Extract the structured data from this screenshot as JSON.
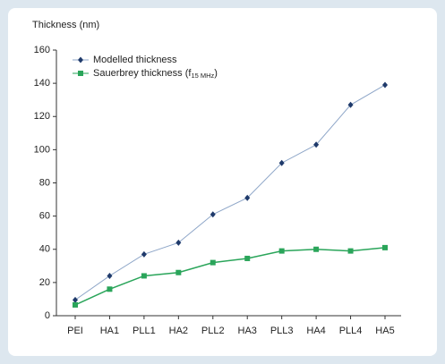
{
  "chart_data": {
    "type": "line",
    "y_label": "Thickness (nm)",
    "categories": [
      "PEI",
      "HA1",
      "PLL1",
      "HA2",
      "PLL2",
      "HA3",
      "PLL3",
      "HA4",
      "PLL4",
      "HA5"
    ],
    "series": [
      {
        "name": "Modelled thickness",
        "color": "#1f3a6b",
        "line_color": "#8ea6c8",
        "marker": "diamond",
        "values": [
          9.5,
          24,
          37,
          44,
          61,
          71,
          92,
          103,
          127,
          139
        ]
      },
      {
        "name": "Sauerbrey thickness (f",
        "name_subscript": "15 MHz",
        "name_suffix": ")",
        "color": "#2aa55a",
        "line_color": "#2aa55a",
        "marker": "square",
        "values": [
          6.5,
          16,
          24,
          26,
          32,
          34.5,
          39,
          40,
          39,
          41
        ]
      }
    ],
    "ylim": [
      0,
      160
    ],
    "yticks": [
      0,
      20,
      40,
      60,
      80,
      100,
      120,
      140,
      160
    ],
    "grid": false
  }
}
